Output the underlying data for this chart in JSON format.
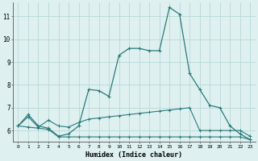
{
  "background_color": "#dff0f0",
  "grid_color": "#b8d8d8",
  "line_color": "#2a7a7a",
  "xlabel": "Humidex (Indice chaleur)",
  "xlim": [
    -0.5,
    23.5
  ],
  "ylim": [
    5.5,
    11.6
  ],
  "yticks": [
    6,
    7,
    8,
    9,
    10,
    11
  ],
  "xticks": [
    0,
    1,
    2,
    3,
    4,
    5,
    6,
    7,
    8,
    9,
    10,
    11,
    12,
    13,
    14,
    15,
    16,
    17,
    18,
    19,
    20,
    21,
    22,
    23
  ],
  "line1_x": [
    0,
    1,
    2,
    3,
    4,
    5,
    6,
    7,
    8,
    9,
    10,
    11,
    12,
    13,
    14,
    15,
    16,
    17,
    18,
    19,
    20,
    21,
    22,
    23
  ],
  "line1_y": [
    6.2,
    6.7,
    6.2,
    6.1,
    5.75,
    5.85,
    6.2,
    7.8,
    7.75,
    7.5,
    9.3,
    9.6,
    9.6,
    9.5,
    9.5,
    11.4,
    11.1,
    8.5,
    7.8,
    7.1,
    7.0,
    6.2,
    5.85,
    5.6
  ],
  "line2_x": [
    0,
    1,
    2,
    3,
    4,
    5,
    6,
    7,
    8,
    9,
    10,
    11,
    12,
    13,
    14,
    15,
    16,
    17,
    18,
    19,
    20,
    21,
    22,
    23
  ],
  "line2_y": [
    6.2,
    6.6,
    6.15,
    6.45,
    6.2,
    6.15,
    6.35,
    6.5,
    6.55,
    6.6,
    6.65,
    6.7,
    6.75,
    6.8,
    6.85,
    6.9,
    6.95,
    7.0,
    6.0,
    6.0,
    6.0,
    6.0,
    6.0,
    5.75
  ],
  "line3_x": [
    0,
    1,
    2,
    3,
    4,
    5,
    6,
    7,
    8,
    9,
    10,
    11,
    12,
    13,
    14,
    15,
    16,
    17,
    18,
    19,
    20,
    21,
    22,
    23
  ],
  "line3_y": [
    6.2,
    6.15,
    6.1,
    6.05,
    5.72,
    5.72,
    5.72,
    5.72,
    5.72,
    5.72,
    5.72,
    5.72,
    5.72,
    5.72,
    5.72,
    5.72,
    5.72,
    5.72,
    5.72,
    5.72,
    5.72,
    5.72,
    5.72,
    5.6
  ]
}
